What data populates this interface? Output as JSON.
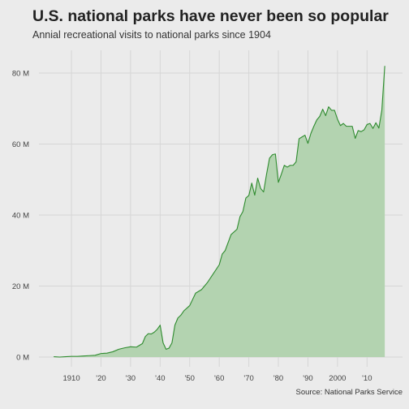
{
  "chart_data": {
    "type": "area",
    "title": "U.S. national parks have never been so popular",
    "subtitle": "Annial recreational visits to national parks since 1904",
    "caption": "Source: National Parks Service",
    "xlabel": "",
    "ylabel": "",
    "xlim": [
      1899,
      2022
    ],
    "ylim": [
      0,
      88
    ],
    "x_ticks": [
      1910,
      1920,
      1930,
      1940,
      1950,
      1960,
      1970,
      1980,
      1990,
      2000,
      2010
    ],
    "x_tick_labels": [
      "1910",
      "'20",
      "'30",
      "'40",
      "'50",
      "'60",
      "'70",
      "'80",
      "'90",
      "2000",
      "'10"
    ],
    "y_ticks": [
      0,
      20,
      40,
      60,
      80
    ],
    "y_tick_labels": [
      "0 M",
      "20 M",
      "40 M",
      "60 M",
      "80 M"
    ],
    "grid": true,
    "colors": {
      "fill": "#b3d3b0",
      "line": "#2e8b2e",
      "background": "#ebebeb",
      "grid": "#d6d6d6"
    },
    "series": [
      {
        "x": [
          1904,
          1906,
          1908,
          1910,
          1912,
          1914,
          1916,
          1918,
          1920,
          1922,
          1924,
          1926,
          1928,
          1930,
          1932,
          1934,
          1935,
          1936,
          1937,
          1938,
          1939,
          1940,
          1941,
          1942,
          1943,
          1944,
          1945,
          1946,
          1947,
          1948,
          1950,
          1952,
          1954,
          1956,
          1958,
          1960,
          1961,
          1962,
          1964,
          1966,
          1967,
          1968,
          1969,
          1970,
          1971,
          1972,
          1973,
          1974,
          1975,
          1976,
          1977,
          1978,
          1979,
          1980,
          1981,
          1982,
          1983,
          1984,
          1985,
          1986,
          1987,
          1988,
          1989,
          1990,
          1991,
          1992,
          1993,
          1994,
          1995,
          1996,
          1997,
          1998,
          1999,
          2000,
          2001,
          2002,
          2003,
          2004,
          2005,
          2006,
          2007,
          2008,
          2009,
          2010,
          2011,
          2012,
          2013,
          2014,
          2015,
          2016
        ],
        "values": [
          0.1,
          0.0,
          0.1,
          0.2,
          0.2,
          0.3,
          0.4,
          0.5,
          1.0,
          1.1,
          1.5,
          2.2,
          2.6,
          2.9,
          2.8,
          3.8,
          5.8,
          6.6,
          6.5,
          7.0,
          7.8,
          9.0,
          4.0,
          2.2,
          2.5,
          4.0,
          9.0,
          11.0,
          11.8,
          13.0,
          14.5,
          18.0,
          19.0,
          21.0,
          23.5,
          26.0,
          29.0,
          30.0,
          34.5,
          36.0,
          39.5,
          41.0,
          44.8,
          45.5,
          49.0,
          45.6,
          50.4,
          47.5,
          46.5,
          51.5,
          56.0,
          57.0,
          57.2,
          49.2,
          51.5,
          54.0,
          53.5,
          54.0,
          54.0,
          55.0,
          61.5,
          62.0,
          62.5,
          60.2,
          63.0,
          65.0,
          66.8,
          67.8,
          69.8,
          68.0,
          70.5,
          69.5,
          69.5,
          67.0,
          65.2,
          65.8,
          65.0,
          65.0,
          65.0,
          61.6,
          63.8,
          63.5,
          64.0,
          65.5,
          65.8,
          64.4,
          66.0,
          64.5,
          69.5,
          82.0
        ]
      }
    ]
  }
}
